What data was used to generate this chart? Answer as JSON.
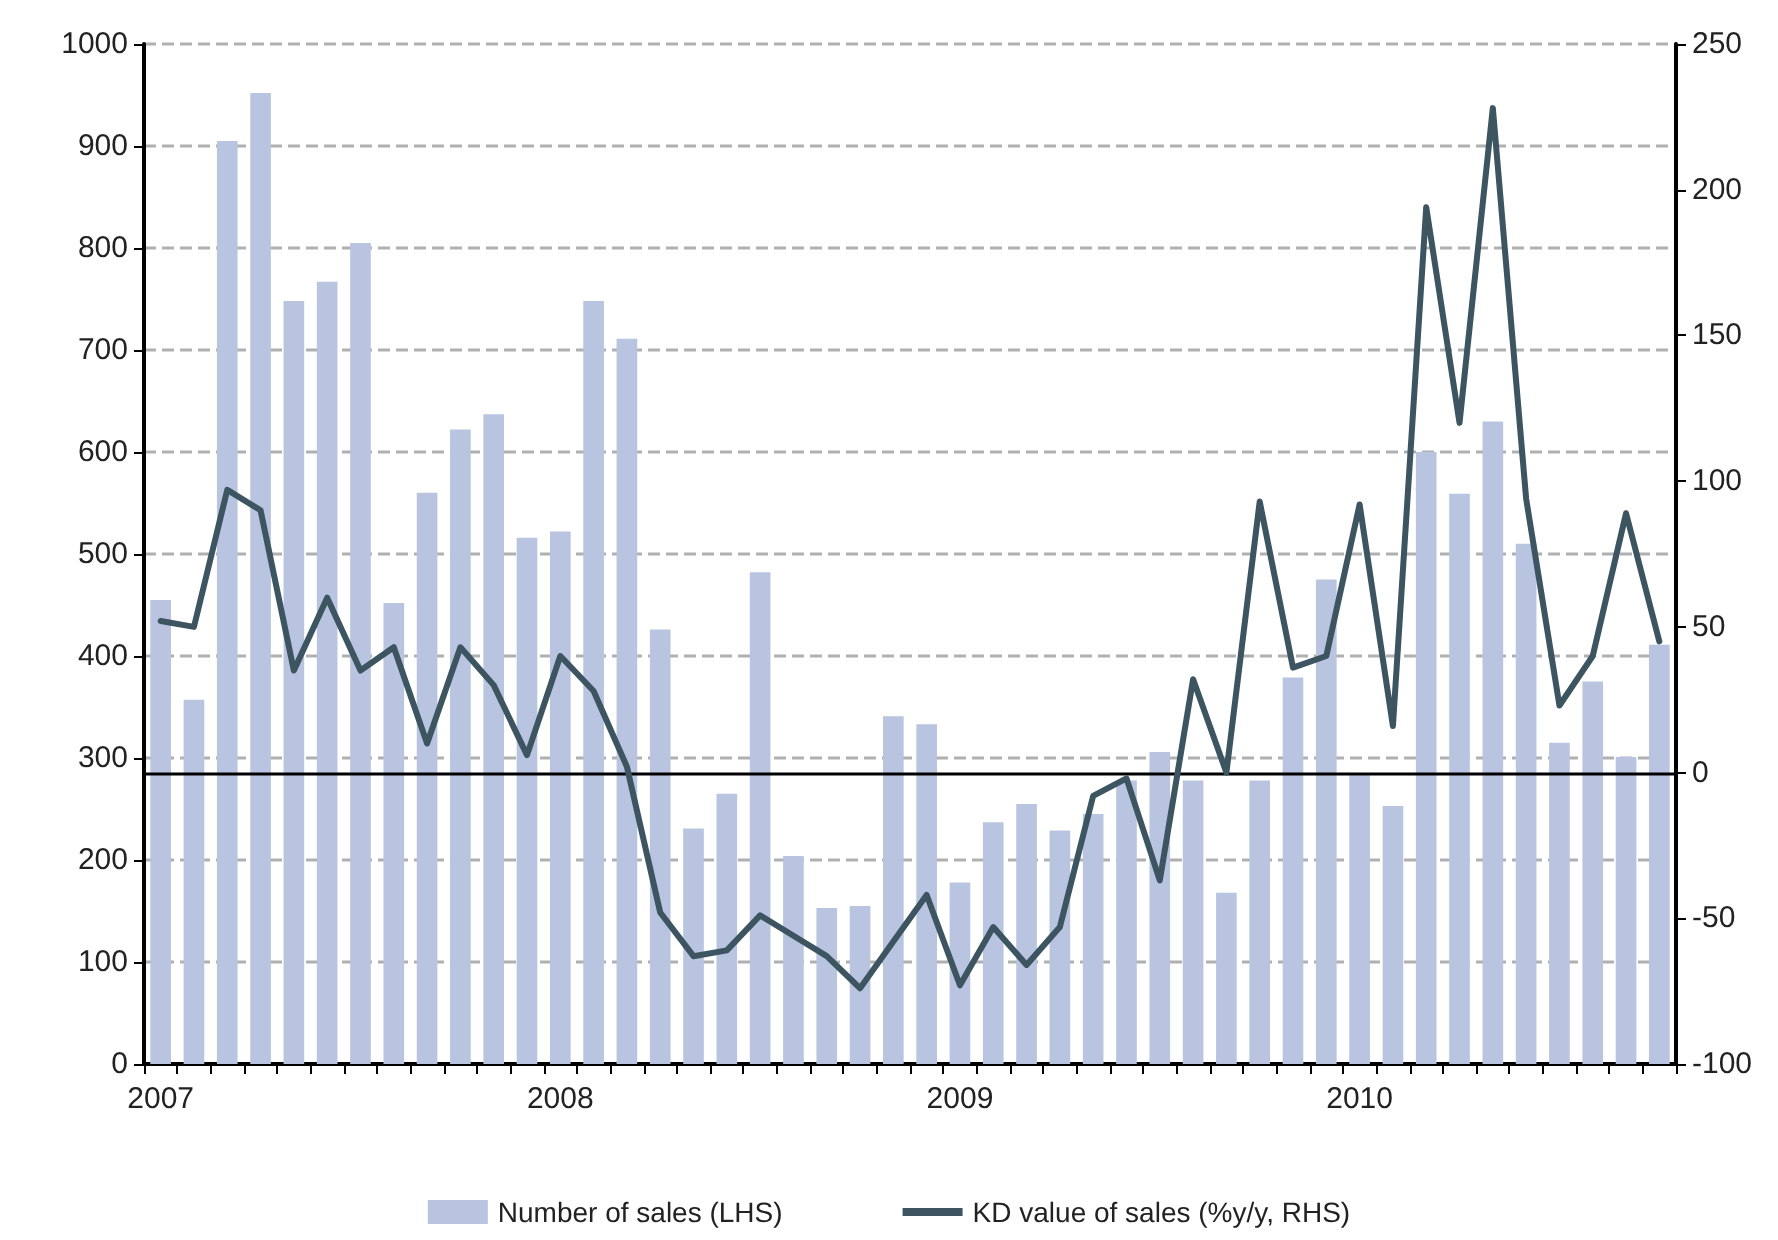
{
  "chart_data": {
    "type": "bar",
    "categories": [
      "2007",
      null,
      null,
      null,
      null,
      null,
      null,
      null,
      null,
      null,
      null,
      null,
      "2008",
      null,
      null,
      null,
      null,
      null,
      null,
      null,
      null,
      null,
      null,
      null,
      "2009",
      null,
      null,
      null,
      null,
      null,
      null,
      null,
      null,
      null,
      null,
      null,
      "2010",
      null,
      null,
      null,
      null,
      null,
      null,
      null,
      null,
      null
    ],
    "series": [
      {
        "name": "Number of sales (LHS)",
        "color": "#b8c4e0",
        "values": [
          455,
          357,
          905,
          952,
          748,
          767,
          805,
          452,
          560,
          622,
          637,
          516,
          522,
          748,
          711,
          426,
          231,
          265,
          482,
          204,
          153,
          155,
          341,
          333,
          178,
          237,
          255,
          229,
          245,
          278,
          306,
          278,
          168,
          278,
          379,
          475,
          283,
          253,
          600,
          559,
          630,
          510,
          315,
          375,
          301,
          411
        ]
      },
      {
        "name": "KD value of sales (%y/y, RHS)",
        "type": "line",
        "axis": "y2",
        "color": "#3d5461",
        "values": [
          52,
          50,
          97,
          90,
          35,
          60,
          35,
          43,
          10,
          43,
          30,
          6,
          40,
          28,
          2,
          -48,
          -63,
          -61,
          -49,
          -56,
          -63,
          -74,
          -58,
          -42,
          -73,
          -53,
          -66,
          -53,
          -8,
          -2,
          -37,
          32,
          0,
          93,
          36,
          40,
          92,
          16,
          194,
          120,
          228,
          94,
          23,
          40,
          89,
          45
        ]
      }
    ],
    "ylim": [
      0,
      1000
    ],
    "yticks": [
      0,
      100,
      200,
      300,
      400,
      500,
      600,
      700,
      800,
      900,
      1000
    ],
    "y2lim": [
      -100,
      250
    ],
    "y2ticks": [
      -100,
      -50,
      0,
      50,
      100,
      150,
      200,
      250
    ],
    "ref_lines": [
      {
        "axis": "y2",
        "value": 0,
        "color": "#000000",
        "line_style": "solid"
      }
    ],
    "grid": "y",
    "legend": "bottom",
    "marker": "none",
    "line_style": "solid"
  }
}
